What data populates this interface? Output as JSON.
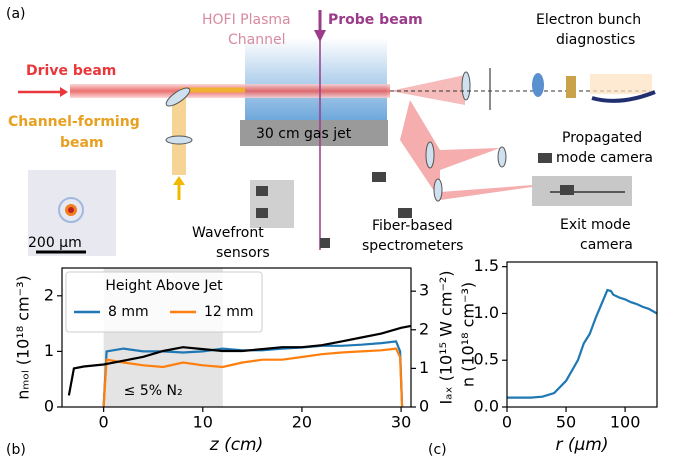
{
  "panels": [
    "(a)",
    "(b)",
    "(c)"
  ],
  "schematic": {
    "drive_beam": "Drive beam",
    "hofi_channel": [
      "HOFI Plasma",
      "Channel"
    ],
    "probe_beam": "Probe beam",
    "electron_diagnostics": [
      "Electron bunch",
      "diagnostics"
    ],
    "channel_forming_beam": [
      "Channel-forming",
      "beam"
    ],
    "gas_jet": "30 cm gas jet",
    "propagated_mode_camera": [
      "Propagated",
      "mode camera"
    ],
    "scale_bar": "200 μm",
    "wavefront_sensors": [
      "Wavefront",
      "sensors"
    ],
    "fiber_spectrometers": [
      "Fiber-based",
      "spectrometers"
    ],
    "exit_mode_camera": [
      "Exit mode",
      "camera"
    ]
  },
  "chart_data": [
    {
      "type": "line",
      "xlabel": "z (cm)",
      "ylabel": "nₘₒₗ (10¹⁸ cm⁻³)",
      "y2label": "Iₐₓ (10¹⁵ W cm⁻²)",
      "annotation": "≤ 5% N₂",
      "legend_title": "Height Above Jet",
      "legend": "upper left",
      "xlim": [
        -4.2,
        31
      ],
      "xticks": [
        0,
        10,
        20,
        30
      ],
      "ylim": [
        0,
        2.5
      ],
      "yticks": [
        0,
        1,
        2
      ],
      "y2lim": [
        0,
        3.6
      ],
      "y2ticks": [
        0,
        1,
        2,
        3
      ],
      "series": [
        {
          "name": "8 mm",
          "color": "#1f77b4",
          "x": [
            0,
            0.3,
            2,
            4,
            6,
            8,
            10,
            12,
            14,
            16,
            18,
            20,
            22,
            24,
            26,
            28,
            29.5,
            29.9,
            30.1
          ],
          "values": [
            0,
            1.0,
            1.05,
            1.0,
            1.0,
            0.98,
            1.0,
            1.05,
            1.02,
            1.02,
            1.05,
            1.07,
            1.1,
            1.1,
            1.12,
            1.15,
            1.18,
            1.0,
            0
          ]
        },
        {
          "name": "12 mm",
          "color": "#ff7f0e",
          "x": [
            0,
            0.3,
            2,
            4,
            6,
            8,
            10,
            12,
            14,
            16,
            18,
            20,
            22,
            24,
            26,
            28,
            29.5,
            29.9,
            30.1
          ],
          "values": [
            0,
            0.85,
            0.8,
            0.75,
            0.72,
            0.8,
            0.75,
            0.72,
            0.8,
            0.85,
            0.85,
            0.9,
            0.95,
            0.98,
            1.0,
            1.02,
            1.05,
            0.9,
            0
          ]
        },
        {
          "color": "#000000",
          "axis": "y2",
          "x": [
            -3.5,
            -3,
            -2,
            0,
            2,
            4,
            6,
            8,
            10,
            12,
            14,
            16,
            18,
            20,
            22,
            24,
            26,
            28,
            30,
            31
          ],
          "values": [
            0.3,
            1.0,
            1.05,
            1.1,
            1.2,
            1.3,
            1.45,
            1.55,
            1.5,
            1.45,
            1.45,
            1.5,
            1.55,
            1.55,
            1.6,
            1.7,
            1.8,
            1.9,
            2.05,
            2.1
          ]
        }
      ]
    },
    {
      "type": "line",
      "xlabel": "r (μm)",
      "ylabel": "n (10¹⁸ cm⁻³)",
      "xlim": [
        0,
        127
      ],
      "xticks": [
        0,
        50,
        100
      ],
      "ylim": [
        0,
        1.55
      ],
      "yticks": [
        {
          "value": 0,
          "label": "0.0"
        },
        {
          "value": 0.5,
          "label": "0.5"
        },
        {
          "value": 1,
          "label": "1.0"
        },
        {
          "value": 1.5,
          "label": "1.5"
        }
      ],
      "series": [
        {
          "color": "#1f77b4",
          "x": [
            0,
            20,
            30,
            40,
            50,
            60,
            65,
            70,
            75,
            80,
            85,
            88,
            90,
            95,
            100,
            105,
            110,
            115,
            120,
            127
          ],
          "values": [
            0.1,
            0.1,
            0.11,
            0.15,
            0.28,
            0.5,
            0.68,
            0.78,
            0.95,
            1.1,
            1.25,
            1.24,
            1.2,
            1.17,
            1.15,
            1.12,
            1.1,
            1.07,
            1.05,
            1.0
          ]
        }
      ]
    }
  ]
}
